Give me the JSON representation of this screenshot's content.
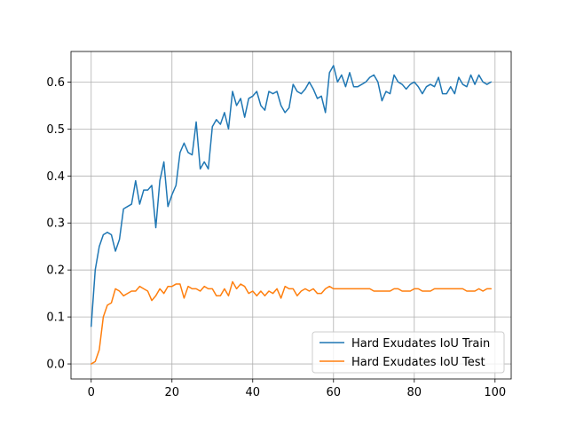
{
  "chart_data": {
    "type": "line",
    "title": "",
    "xlabel": "",
    "ylabel": "",
    "xlim": [
      -5,
      104
    ],
    "ylim": [
      -0.032,
      0.665
    ],
    "xticks": [
      0,
      20,
      40,
      60,
      80,
      100
    ],
    "yticks": [
      0.0,
      0.1,
      0.2,
      0.3,
      0.4,
      0.5,
      0.6
    ],
    "xtick_labels": [
      "0",
      "20",
      "40",
      "60",
      "80",
      "100"
    ],
    "ytick_labels": [
      "0.0",
      "0.1",
      "0.2",
      "0.3",
      "0.4",
      "0.5",
      "0.6"
    ],
    "grid": true,
    "legend_position": "lower-right",
    "x": [
      0,
      1,
      2,
      3,
      4,
      5,
      6,
      7,
      8,
      9,
      10,
      11,
      12,
      13,
      14,
      15,
      16,
      17,
      18,
      19,
      20,
      21,
      22,
      23,
      24,
      25,
      26,
      27,
      28,
      29,
      30,
      31,
      32,
      33,
      34,
      35,
      36,
      37,
      38,
      39,
      40,
      41,
      42,
      43,
      44,
      45,
      46,
      47,
      48,
      49,
      50,
      51,
      52,
      53,
      54,
      55,
      56,
      57,
      58,
      59,
      60,
      61,
      62,
      63,
      64,
      65,
      66,
      67,
      68,
      69,
      70,
      71,
      72,
      73,
      74,
      75,
      76,
      77,
      78,
      79,
      80,
      81,
      82,
      83,
      84,
      85,
      86,
      87,
      88,
      89,
      90,
      91,
      92,
      93,
      94,
      95,
      96,
      97,
      98,
      99
    ],
    "series": [
      {
        "name": "Hard Exudates IoU Train",
        "color": "#1f77b4",
        "values": [
          0.08,
          0.2,
          0.25,
          0.275,
          0.28,
          0.275,
          0.24,
          0.265,
          0.33,
          0.335,
          0.34,
          0.39,
          0.34,
          0.37,
          0.37,
          0.38,
          0.29,
          0.39,
          0.43,
          0.335,
          0.36,
          0.38,
          0.45,
          0.47,
          0.45,
          0.445,
          0.515,
          0.415,
          0.43,
          0.415,
          0.505,
          0.52,
          0.51,
          0.535,
          0.5,
          0.58,
          0.55,
          0.565,
          0.525,
          0.565,
          0.57,
          0.58,
          0.55,
          0.54,
          0.58,
          0.575,
          0.58,
          0.55,
          0.535,
          0.545,
          0.595,
          0.58,
          0.575,
          0.585,
          0.6,
          0.585,
          0.565,
          0.57,
          0.535,
          0.62,
          0.635,
          0.6,
          0.615,
          0.59,
          0.62,
          0.59,
          0.59,
          0.595,
          0.6,
          0.61,
          0.615,
          0.6,
          0.56,
          0.58,
          0.575,
          0.615,
          0.6,
          0.595,
          0.585,
          0.595,
          0.6,
          0.59,
          0.575,
          0.59,
          0.595,
          0.59,
          0.61,
          0.575,
          0.575,
          0.59,
          0.575,
          0.61,
          0.595,
          0.59,
          0.615,
          0.595,
          0.615,
          0.6,
          0.595,
          0.6
        ]
      },
      {
        "name": "Hard Exudates IoU Test",
        "color": "#ff7f0e",
        "values": [
          0.0,
          0.005,
          0.03,
          0.1,
          0.125,
          0.13,
          0.16,
          0.155,
          0.145,
          0.15,
          0.155,
          0.155,
          0.165,
          0.16,
          0.155,
          0.135,
          0.145,
          0.16,
          0.15,
          0.165,
          0.165,
          0.17,
          0.17,
          0.14,
          0.165,
          0.16,
          0.16,
          0.155,
          0.165,
          0.16,
          0.16,
          0.145,
          0.145,
          0.16,
          0.145,
          0.175,
          0.16,
          0.17,
          0.165,
          0.15,
          0.155,
          0.145,
          0.155,
          0.145,
          0.155,
          0.15,
          0.16,
          0.14,
          0.165,
          0.16,
          0.16,
          0.145,
          0.155,
          0.16,
          0.155,
          0.16,
          0.15,
          0.15,
          0.16,
          0.165,
          0.16,
          0.16,
          0.16,
          0.16,
          0.16,
          0.16,
          0.16,
          0.16,
          0.16,
          0.16,
          0.155,
          0.155,
          0.155,
          0.155,
          0.155,
          0.16,
          0.16,
          0.155,
          0.155,
          0.155,
          0.16,
          0.16,
          0.155,
          0.155,
          0.155,
          0.16,
          0.16,
          0.16,
          0.16,
          0.16,
          0.16,
          0.16,
          0.16,
          0.155,
          0.155,
          0.155,
          0.16,
          0.155,
          0.16,
          0.16
        ]
      }
    ]
  }
}
